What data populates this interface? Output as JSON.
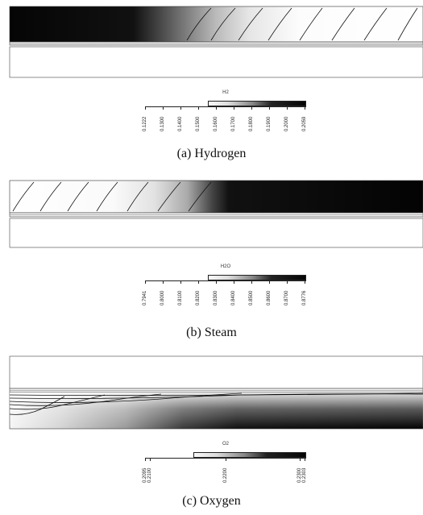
{
  "figures": [
    {
      "id": "hydrogen",
      "caption": "(a) Hydrogen",
      "legend_title": "H2",
      "legend_gradient": "light-to-dark",
      "tick_labels": [
        "0.1222",
        "0.1300",
        "0.1400",
        "0.1500",
        "0.1600",
        "0.1700",
        "0.1800",
        "0.1900",
        "0.2000",
        "0.2059"
      ],
      "contour_profile": "dark-left-fading-right"
    },
    {
      "id": "steam",
      "caption": "(b) Steam",
      "legend_title": "H2O",
      "legend_gradient": "light-to-dark",
      "tick_labels": [
        "0.7941",
        "0.8000",
        "0.8100",
        "0.8200",
        "0.8300",
        "0.8400",
        "0.8500",
        "0.8600",
        "0.8700",
        "0.8776"
      ],
      "contour_profile": "light-left-dark-right"
    },
    {
      "id": "oxygen",
      "caption": "(c) Oxygen",
      "legend_title": "O2",
      "legend_gradient": "light-to-dark",
      "tick_labels": [
        "0.2095",
        "0.2100",
        "0.2200",
        "0.2300",
        "0.2303"
      ],
      "contour_profile": "lower-channel-dark-right"
    }
  ],
  "colors": {
    "dark": "#0a0a0a",
    "light": "#fafafa",
    "outline": "#333333"
  }
}
